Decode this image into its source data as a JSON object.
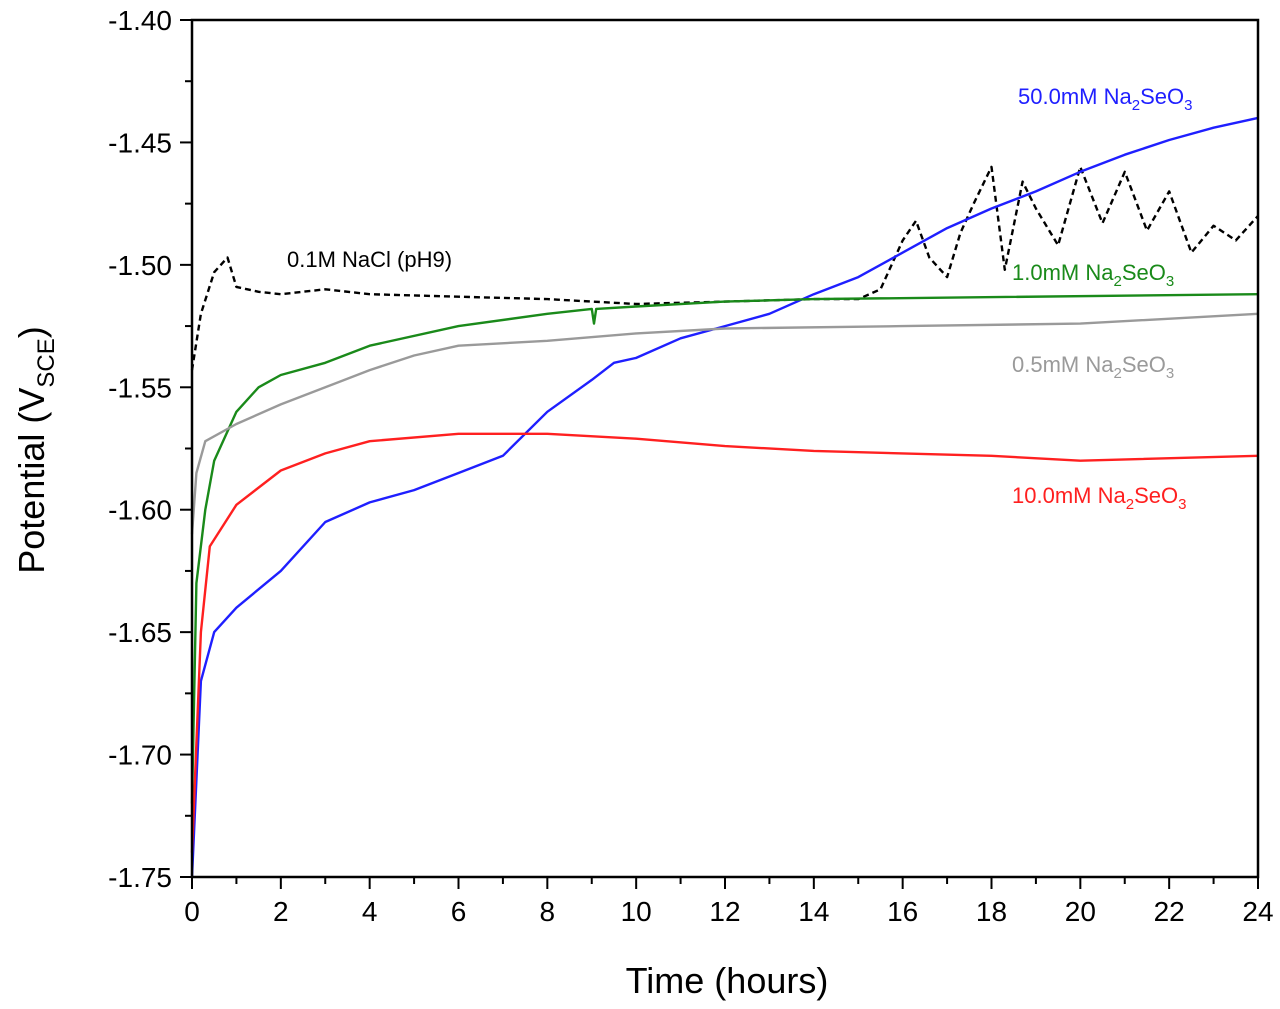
{
  "chart_data": {
    "type": "line",
    "title": "",
    "xlabel": "Time (hours)",
    "ylabel": {
      "main": "Potential (V",
      "sub": "SCE",
      "end": ")"
    },
    "xlim": [
      0,
      24
    ],
    "ylim": [
      -1.75,
      -1.4
    ],
    "xticks": [
      0,
      2,
      4,
      6,
      8,
      10,
      12,
      14,
      16,
      18,
      20,
      22,
      24
    ],
    "xtick_labels": [
      "0",
      "2",
      "4",
      "6",
      "8",
      "10",
      "12",
      "14",
      "16",
      "18",
      "20",
      "22",
      "24"
    ],
    "yticks": [
      -1.4,
      -1.45,
      -1.5,
      -1.55,
      -1.6,
      -1.65,
      -1.7,
      -1.75
    ],
    "ytick_labels": [
      "-1.40",
      "-1.45",
      "-1.50",
      "-1.55",
      "-1.60",
      "-1.65",
      "-1.70",
      "-1.75"
    ],
    "grid": false,
    "series": [
      {
        "name": "0.1M NaCl (pH9)",
        "label": {
          "parts": [
            "0.1M NaCl (pH9)"
          ]
        },
        "color": "#000000",
        "dash": true,
        "x": [
          0,
          0.2,
          0.5,
          0.8,
          1,
          1.5,
          2,
          3,
          4,
          6,
          8,
          10,
          12,
          14,
          15,
          15.5,
          16,
          16.3,
          16.6,
          17,
          17.3,
          17.6,
          18,
          18.3,
          18.7,
          19,
          19.5,
          20,
          20.5,
          21,
          21.5,
          22,
          22.5,
          23,
          23.5,
          24
        ],
        "y": [
          -1.543,
          -1.52,
          -1.503,
          -1.497,
          -1.509,
          -1.511,
          -1.512,
          -1.51,
          -1.512,
          -1.513,
          -1.514,
          -1.516,
          -1.515,
          -1.514,
          -1.514,
          -1.51,
          -1.49,
          -1.482,
          -1.497,
          -1.505,
          -1.487,
          -1.475,
          -1.46,
          -1.502,
          -1.466,
          -1.477,
          -1.492,
          -1.46,
          -1.483,
          -1.462,
          -1.486,
          -1.47,
          -1.495,
          -1.484,
          -1.49,
          -1.48
        ]
      },
      {
        "name": "50.0mM Na2SeO3",
        "label": {
          "parts": [
            "50.0mM Na",
            "2",
            "SeO",
            "3"
          ]
        },
        "color": "#1f1fff",
        "x": [
          0,
          0.2,
          0.5,
          1,
          2,
          3,
          4,
          5,
          6,
          7,
          8,
          9,
          9.5,
          10,
          11,
          12,
          13,
          14,
          15,
          16,
          17,
          18,
          19,
          20,
          21,
          22,
          23,
          24
        ],
        "y": [
          -1.75,
          -1.67,
          -1.65,
          -1.64,
          -1.625,
          -1.605,
          -1.597,
          -1.592,
          -1.585,
          -1.578,
          -1.56,
          -1.547,
          -1.54,
          -1.538,
          -1.53,
          -1.525,
          -1.52,
          -1.512,
          -1.505,
          -1.495,
          -1.485,
          -1.477,
          -1.47,
          -1.462,
          -1.455,
          -1.449,
          -1.444,
          -1.44
        ]
      },
      {
        "name": "1.0mM Na2SeO3",
        "label": {
          "parts": [
            "1.0mM Na",
            "2",
            "SeO",
            "3"
          ]
        },
        "color": "#1a8a1a",
        "x": [
          0,
          0.1,
          0.3,
          0.5,
          1,
          1.5,
          2,
          3,
          4,
          6,
          8,
          9,
          9.05,
          9.1,
          10,
          12,
          14,
          24
        ],
        "y": [
          -1.72,
          -1.63,
          -1.6,
          -1.58,
          -1.56,
          -1.55,
          -1.545,
          -1.54,
          -1.533,
          -1.525,
          -1.52,
          -1.518,
          -1.524,
          -1.518,
          -1.517,
          -1.515,
          -1.514,
          -1.512
        ]
      },
      {
        "name": "0.5mM Na2SeO3",
        "label": {
          "parts": [
            "0.5mM Na",
            "2",
            "SeO",
            "3"
          ]
        },
        "color": "#9a9a9a",
        "x": [
          0,
          0.1,
          0.3,
          1,
          2,
          3,
          4,
          5,
          6,
          8,
          10,
          12,
          16,
          20,
          24
        ],
        "y": [
          -1.61,
          -1.585,
          -1.572,
          -1.565,
          -1.557,
          -1.55,
          -1.543,
          -1.537,
          -1.533,
          -1.531,
          -1.528,
          -1.526,
          -1.525,
          -1.524,
          -1.52
        ]
      },
      {
        "name": "10.0mM Na2SeO3",
        "label": {
          "parts": [
            "10.0mM Na",
            "2",
            "SeO",
            "3"
          ]
        },
        "color": "#ff2020",
        "x": [
          0,
          0.2,
          0.4,
          1,
          2,
          3,
          4,
          6,
          8,
          10,
          12,
          14,
          16,
          18,
          20,
          24
        ],
        "y": [
          -1.74,
          -1.65,
          -1.615,
          -1.598,
          -1.584,
          -1.577,
          -1.572,
          -1.569,
          -1.569,
          -1.571,
          -1.574,
          -1.576,
          -1.577,
          -1.578,
          -1.58,
          -1.578
        ]
      }
    ]
  }
}
